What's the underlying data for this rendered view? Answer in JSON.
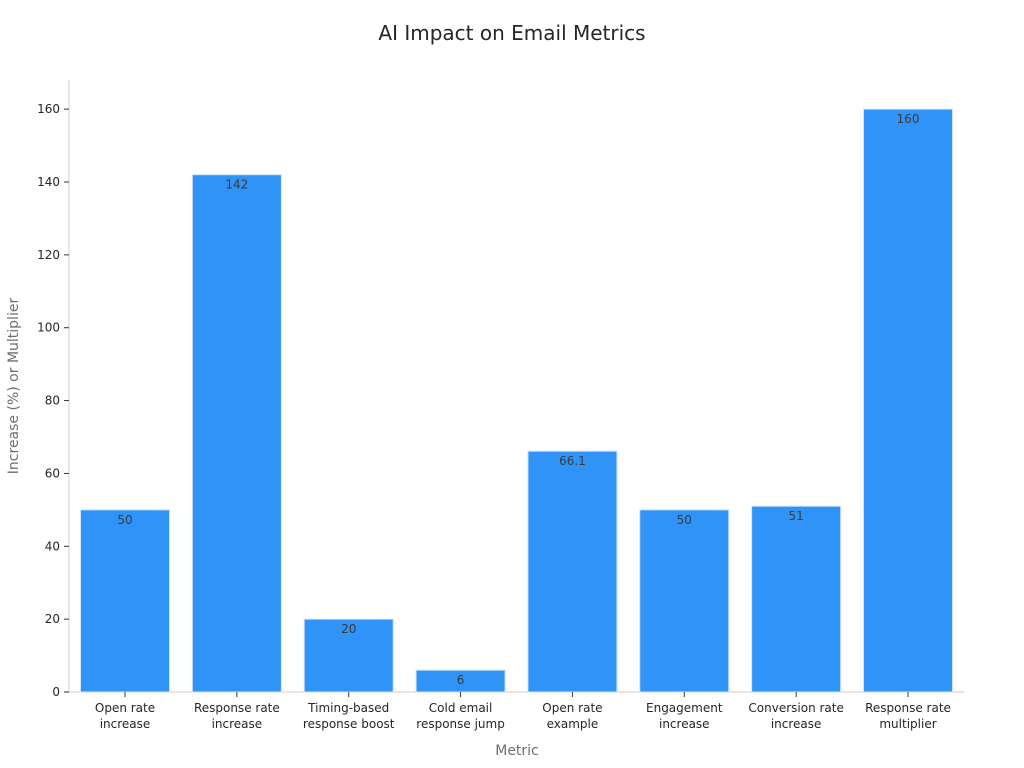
{
  "chart_data": {
    "type": "bar",
    "title": "AI Impact on Email Metrics",
    "xlabel": "Metric",
    "ylabel": "Increase (%) or Multiplier",
    "categories": [
      [
        "Open rate",
        "increase"
      ],
      [
        "Response rate",
        "increase"
      ],
      [
        "Timing-based",
        "response boost"
      ],
      [
        "Cold email",
        "response jump"
      ],
      [
        "Open rate",
        "example"
      ],
      [
        "Engagement",
        "increase"
      ],
      [
        "Conversion rate",
        "increase"
      ],
      [
        "Response rate",
        "multiplier"
      ]
    ],
    "values": [
      50,
      142,
      20,
      6,
      66.1,
      50,
      51,
      160
    ],
    "value_labels": [
      "50",
      "142",
      "20",
      "6",
      "66.1",
      "50",
      "51",
      "160"
    ],
    "yticks": [
      0,
      20,
      40,
      60,
      80,
      100,
      120,
      140,
      160
    ],
    "ylim": [
      0,
      168
    ],
    "grid": false,
    "bar_color": "#2f93f8"
  }
}
